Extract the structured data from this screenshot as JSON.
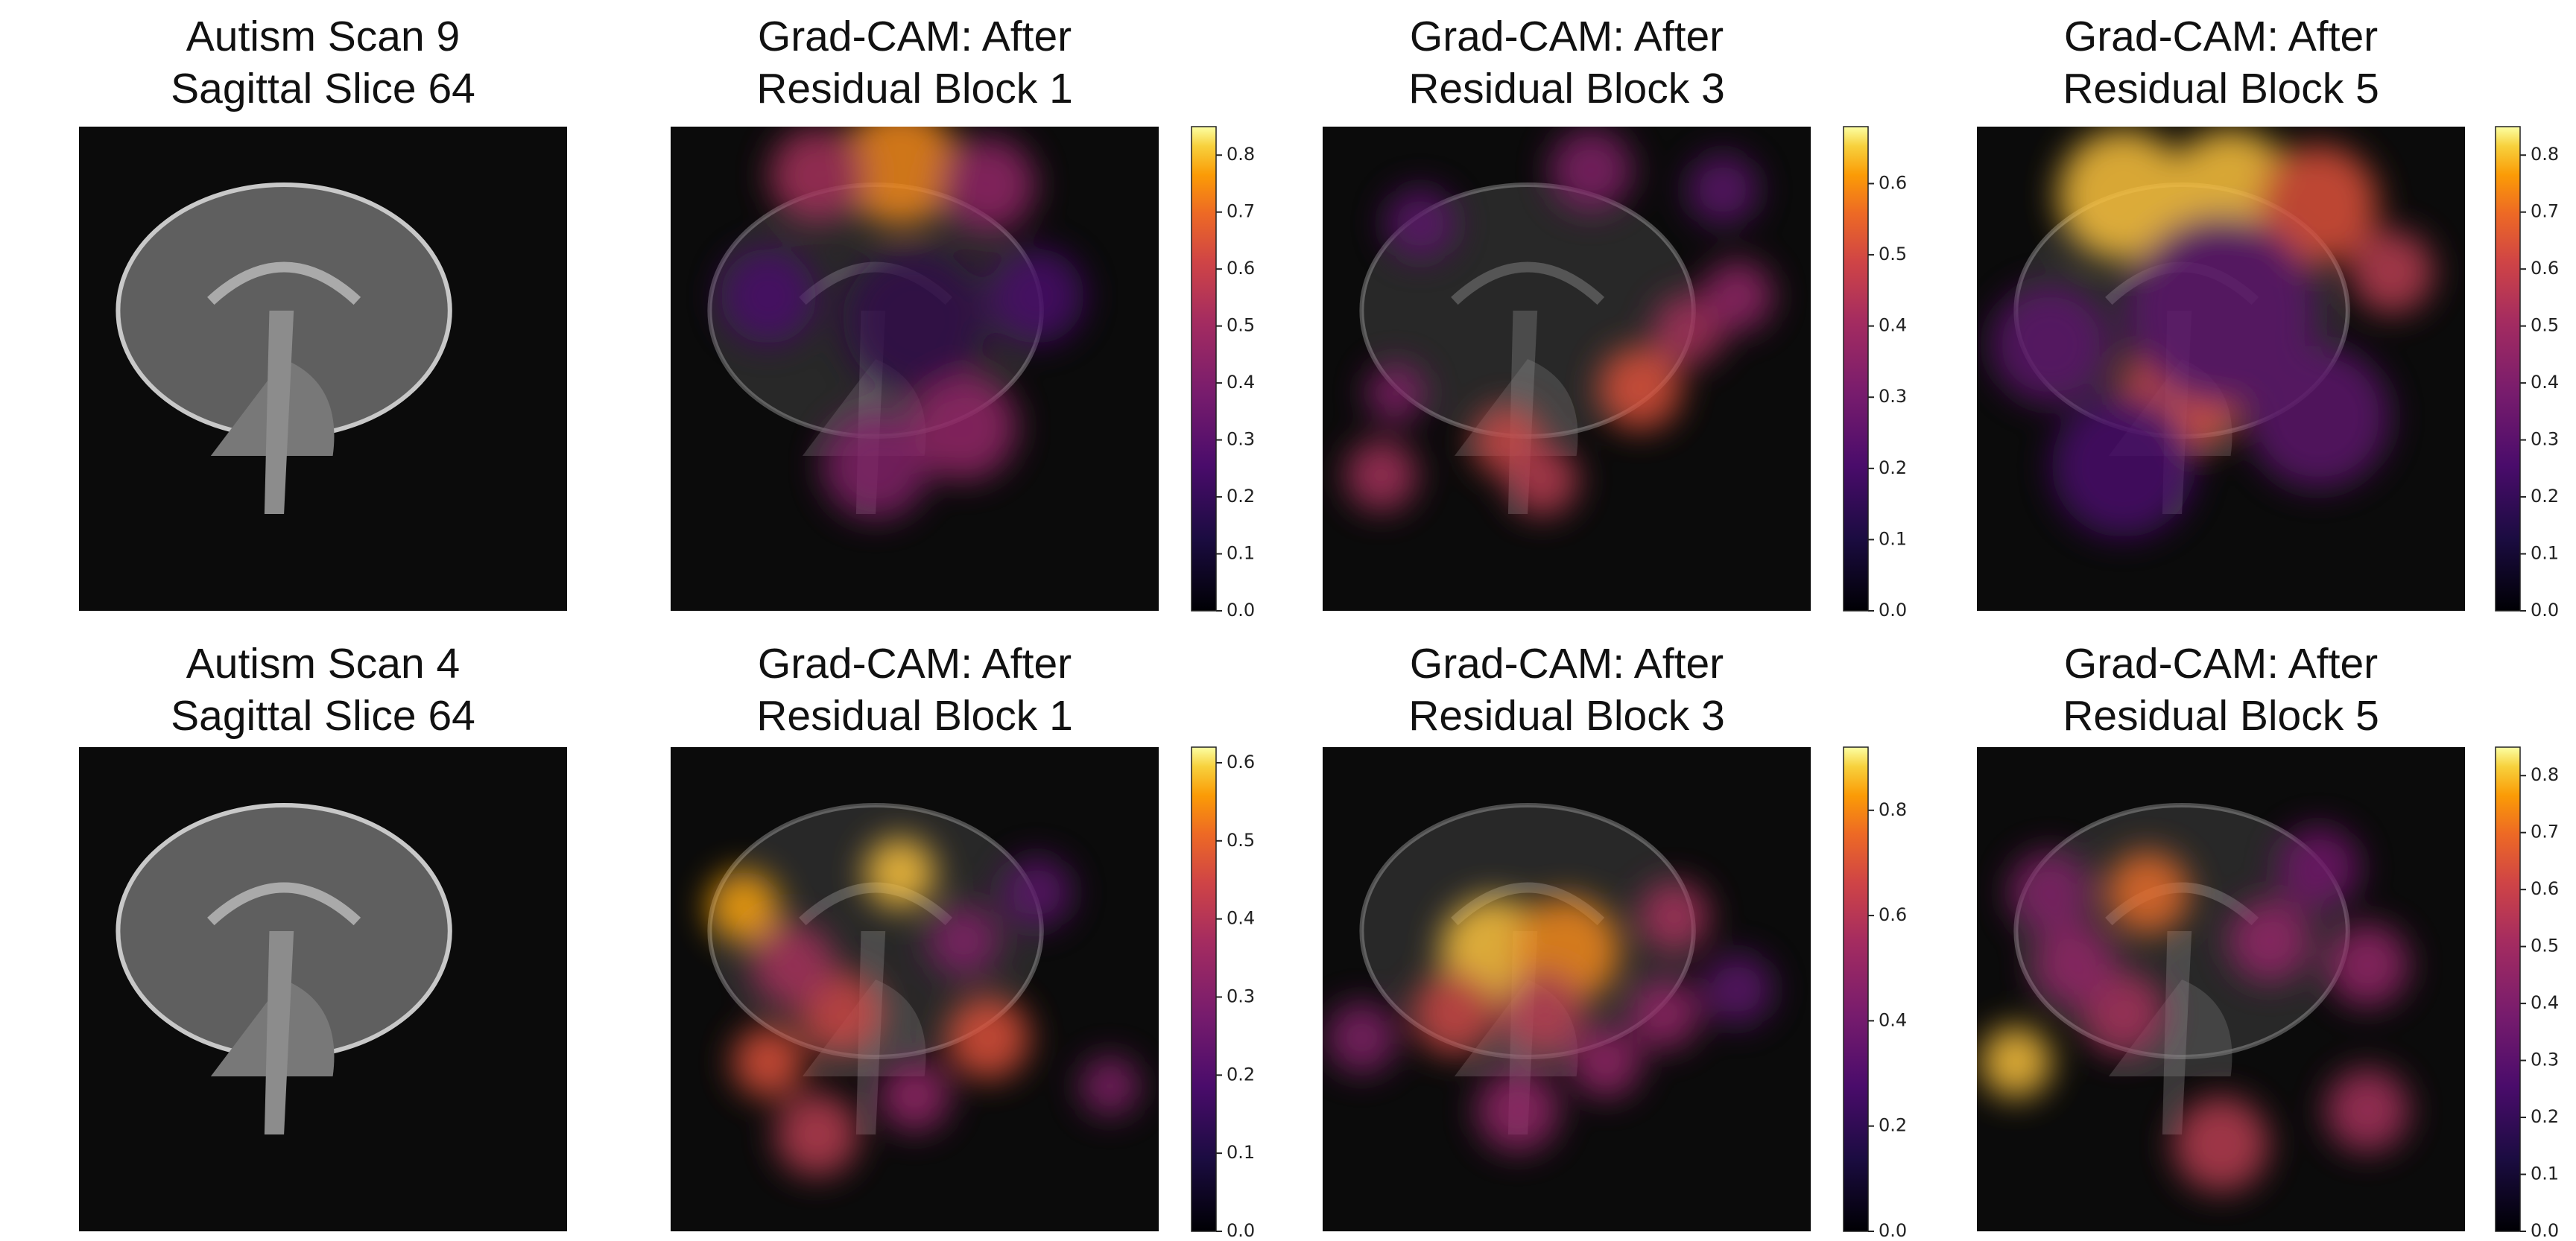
{
  "rows": [
    {
      "panels": [
        {
          "title": [
            "Autism Scan 9",
            "Sagittal Slice 64"
          ]
        },
        {
          "title": [
            "Grad-CAM: After",
            "Residual Block 1"
          ],
          "colorbar": {
            "lim": [
              0,
              0.85
            ],
            "ticks": [
              {
                "value": 0,
                "label": "0.0"
              },
              0.1,
              0.2,
              0.3,
              0.4,
              0.5,
              0.6,
              0.7,
              0.8
            ]
          }
        },
        {
          "title": [
            "Grad-CAM: After",
            "Residual Block 3"
          ],
          "colorbar": {
            "lim": [
              0,
              0.68
            ],
            "ticks": [
              {
                "value": 0,
                "label": "0.0"
              },
              0.1,
              0.2,
              0.3,
              0.4,
              0.5,
              0.6
            ]
          }
        },
        {
          "title": [
            "Grad-CAM: After",
            "Residual Block 5"
          ],
          "colorbar": {
            "lim": [
              0,
              0.85
            ],
            "ticks": [
              {
                "value": 0,
                "label": "0.0"
              },
              0.1,
              0.2,
              0.3,
              0.4,
              0.5,
              0.6,
              0.7,
              0.8
            ]
          }
        }
      ]
    },
    {
      "panels": [
        {
          "title": [
            "Autism Scan 4",
            "Sagittal Slice 64"
          ]
        },
        {
          "title": [
            "Grad-CAM: After",
            "Residual Block 1"
          ],
          "colorbar": {
            "lim": [
              0,
              0.62
            ],
            "ticks": [
              {
                "value": 0,
                "label": "0.0"
              },
              0.1,
              0.2,
              0.3,
              0.4,
              0.5,
              0.6
            ]
          }
        },
        {
          "title": [
            "Grad-CAM: After",
            "Residual Block 3"
          ],
          "colorbar": {
            "lim": [
              0,
              0.92
            ],
            "ticks": [
              {
                "value": 0,
                "label": "0.0"
              },
              0.2,
              0.4,
              0.6,
              0.8
            ]
          }
        },
        {
          "title": [
            "Grad-CAM: After",
            "Residual Block 5"
          ],
          "colorbar": {
            "lim": [
              0,
              0.85
            ],
            "ticks": [
              {
                "value": 0,
                "label": "0.0"
              },
              0.1,
              0.2,
              0.3,
              0.4,
              0.5,
              0.6,
              0.7,
              0.8
            ]
          }
        }
      ]
    }
  ]
}
